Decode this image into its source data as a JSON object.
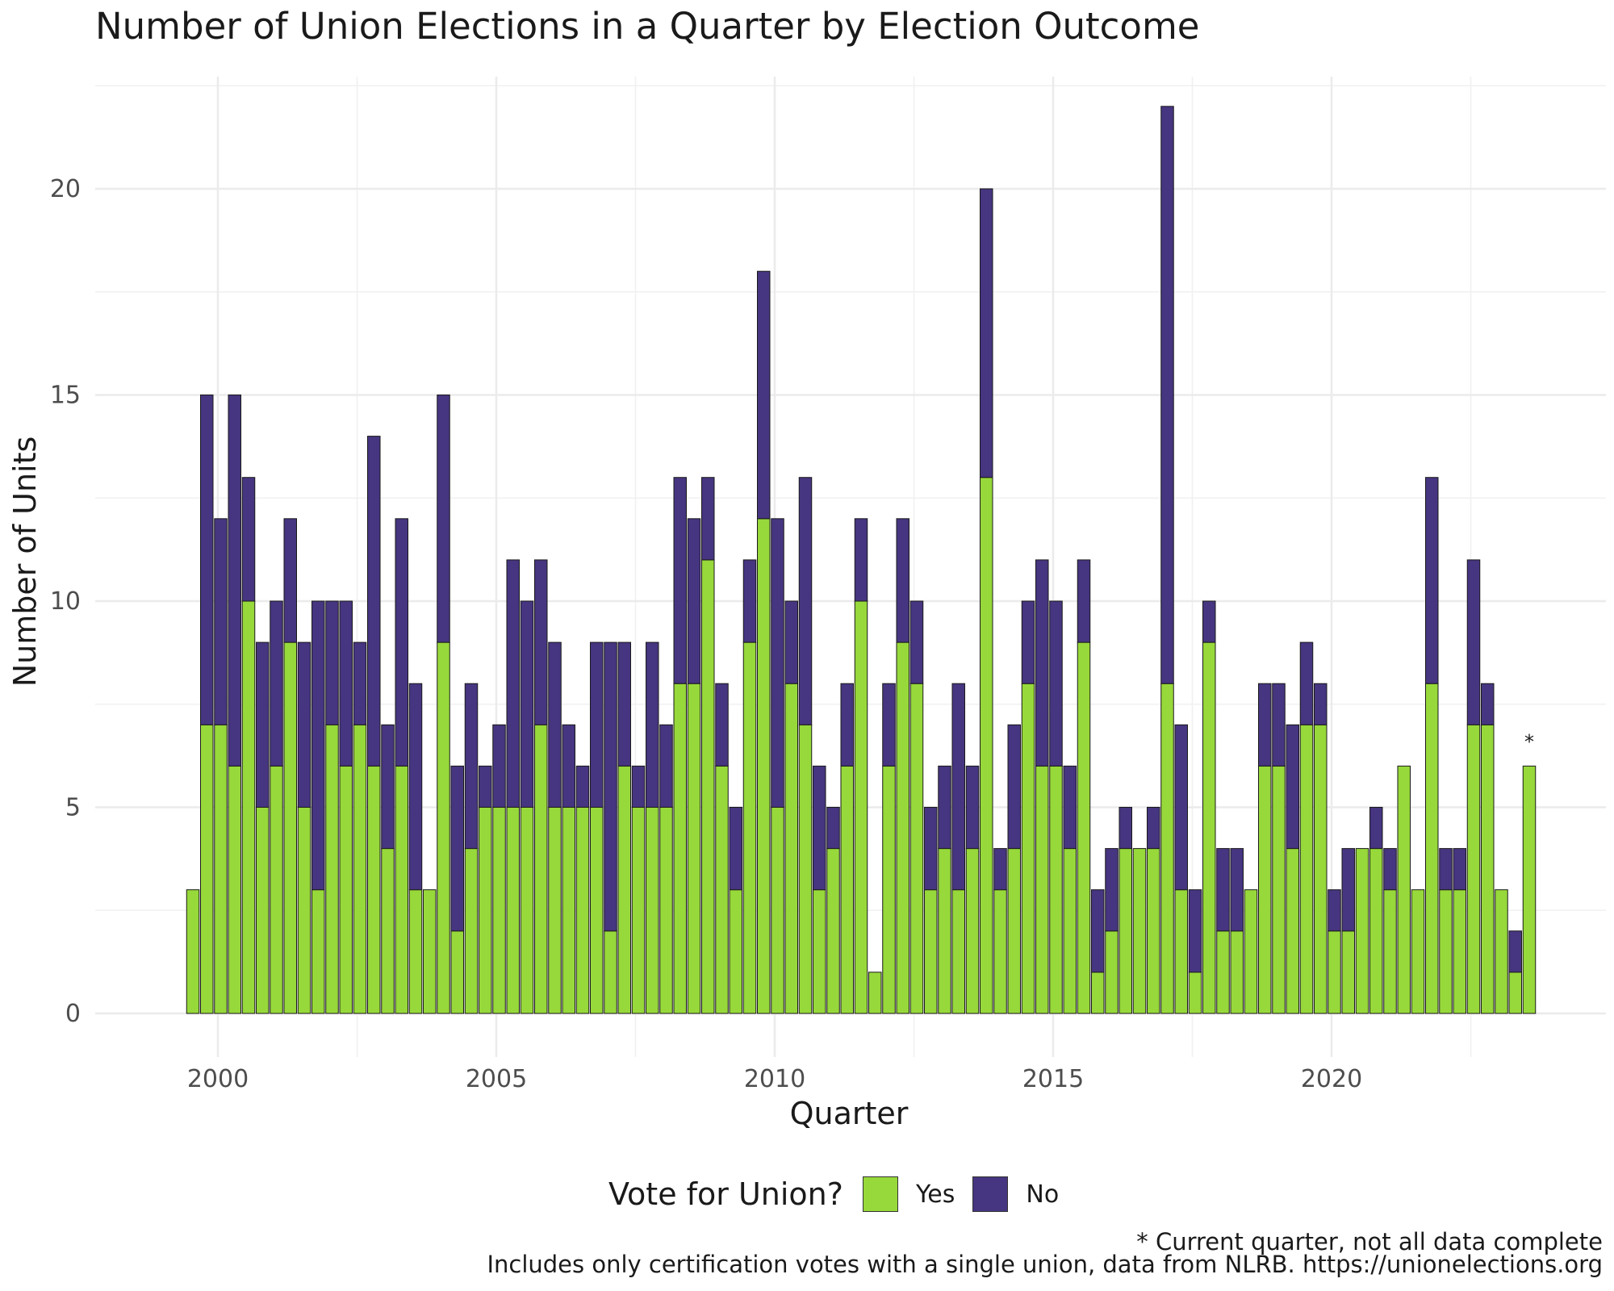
{
  "chart_data": {
    "type": "bar",
    "stacked": true,
    "title": "Number of Union Elections in a Quarter by Election Outcome",
    "xlabel": "Quarter",
    "ylabel": "Number of Units",
    "x_ticks": [
      "2000",
      "2005",
      "2010",
      "2015",
      "2020"
    ],
    "y_ticks": [
      "0",
      "5",
      "10",
      "15",
      "20"
    ],
    "ylim": [
      0,
      22.5
    ],
    "grid": true,
    "legend": {
      "title": "Vote for Union?",
      "position": "bottom",
      "entries": [
        {
          "label": "Yes",
          "color": "#97d83b"
        },
        {
          "label": "No",
          "color": "#463580"
        }
      ]
    },
    "categories": [
      "1999 Q3",
      "1999 Q4",
      "2000 Q1",
      "2000 Q2",
      "2000 Q3",
      "2000 Q4",
      "2001 Q1",
      "2001 Q2",
      "2001 Q3",
      "2001 Q4",
      "2002 Q1",
      "2002 Q2",
      "2002 Q3",
      "2002 Q4",
      "2003 Q1",
      "2003 Q2",
      "2003 Q3",
      "2003 Q4",
      "2004 Q1",
      "2004 Q2",
      "2004 Q3",
      "2004 Q4",
      "2005 Q1",
      "2005 Q2",
      "2005 Q3",
      "2005 Q4",
      "2006 Q1",
      "2006 Q2",
      "2006 Q3",
      "2006 Q4",
      "2007 Q1",
      "2007 Q2",
      "2007 Q3",
      "2007 Q4",
      "2008 Q1",
      "2008 Q2",
      "2008 Q3",
      "2008 Q4",
      "2009 Q1",
      "2009 Q2",
      "2009 Q3",
      "2009 Q4",
      "2010 Q1",
      "2010 Q2",
      "2010 Q3",
      "2010 Q4",
      "2011 Q1",
      "2011 Q2",
      "2011 Q3",
      "2011 Q4",
      "2012 Q1",
      "2012 Q2",
      "2012 Q3",
      "2012 Q4",
      "2013 Q1",
      "2013 Q2",
      "2013 Q3",
      "2013 Q4",
      "2014 Q1",
      "2014 Q2",
      "2014 Q3",
      "2014 Q4",
      "2015 Q1",
      "2015 Q2",
      "2015 Q3",
      "2015 Q4",
      "2016 Q1",
      "2016 Q2",
      "2016 Q3",
      "2016 Q4",
      "2017 Q1",
      "2017 Q2",
      "2017 Q3",
      "2017 Q4",
      "2018 Q1",
      "2018 Q2",
      "2018 Q3",
      "2018 Q4",
      "2019 Q1",
      "2019 Q2",
      "2019 Q3",
      "2019 Q4",
      "2020 Q1",
      "2020 Q2",
      "2020 Q3",
      "2020 Q4",
      "2021 Q1",
      "2021 Q2",
      "2021 Q3",
      "2021 Q4",
      "2022 Q1",
      "2022 Q2",
      "2022 Q3",
      "2022 Q4",
      "2023 Q1",
      "2023 Q2",
      "2023 Q3"
    ],
    "series": [
      {
        "name": "Yes",
        "color": "#97d83b",
        "values": [
          3,
          7,
          7,
          6,
          10,
          5,
          6,
          9,
          5,
          3,
          7,
          6,
          7,
          6,
          4,
          6,
          3,
          3,
          9,
          2,
          4,
          5,
          5,
          5,
          5,
          7,
          5,
          5,
          5,
          5,
          2,
          6,
          5,
          5,
          5,
          8,
          8,
          11,
          6,
          3,
          9,
          12,
          5,
          8,
          7,
          3,
          4,
          6,
          10,
          1,
          6,
          9,
          8,
          3,
          4,
          3,
          4,
          13,
          3,
          4,
          8,
          6,
          6,
          4,
          9,
          1,
          2,
          4,
          4,
          4,
          8,
          3,
          1,
          9,
          2,
          2,
          3,
          6,
          6,
          4,
          7,
          7,
          2,
          2,
          4,
          4,
          3,
          6,
          3,
          8,
          3,
          3,
          7,
          7,
          3,
          1,
          6
        ]
      },
      {
        "name": "No",
        "color": "#463580",
        "values": [
          0,
          8,
          5,
          9,
          3,
          4,
          4,
          3,
          4,
          7,
          3,
          4,
          2,
          8,
          3,
          6,
          5,
          0,
          6,
          4,
          4,
          1,
          2,
          6,
          5,
          4,
          4,
          2,
          1,
          4,
          7,
          3,
          1,
          4,
          2,
          5,
          4,
          2,
          2,
          2,
          2,
          6,
          7,
          2,
          6,
          3,
          1,
          2,
          2,
          0,
          2,
          3,
          2,
          2,
          2,
          5,
          2,
          7,
          1,
          3,
          2,
          5,
          4,
          2,
          2,
          2,
          2,
          1,
          0,
          1,
          14,
          4,
          2,
          1,
          2,
          2,
          0,
          2,
          2,
          3,
          2,
          1,
          1,
          2,
          0,
          1,
          1,
          0,
          0,
          5,
          1,
          1,
          4,
          1,
          0,
          1,
          0
        ]
      }
    ],
    "annotations": [
      {
        "text": "*",
        "category": "2023 Q3"
      }
    ]
  },
  "caption": {
    "line1": "* Current quarter, not all data complete",
    "line2": "Includes only certification votes with a single union, data from NLRB. https://unionelections.org"
  }
}
